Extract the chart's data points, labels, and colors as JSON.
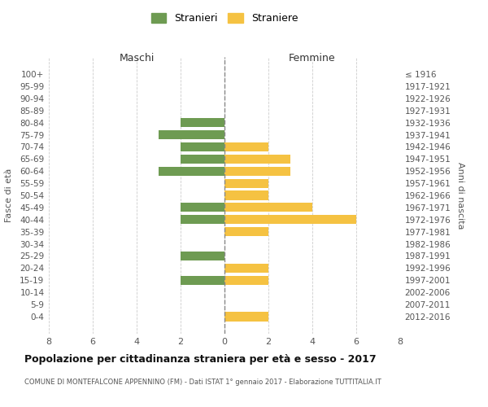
{
  "age_groups": [
    "100+",
    "95-99",
    "90-94",
    "85-89",
    "80-84",
    "75-79",
    "70-74",
    "65-69",
    "60-64",
    "55-59",
    "50-54",
    "45-49",
    "40-44",
    "35-39",
    "30-34",
    "25-29",
    "20-24",
    "15-19",
    "10-14",
    "5-9",
    "0-4"
  ],
  "birth_years": [
    "≤ 1916",
    "1917-1921",
    "1922-1926",
    "1927-1931",
    "1932-1936",
    "1937-1941",
    "1942-1946",
    "1947-1951",
    "1952-1956",
    "1957-1961",
    "1962-1966",
    "1967-1971",
    "1972-1976",
    "1977-1981",
    "1982-1986",
    "1987-1991",
    "1992-1996",
    "1997-2001",
    "2002-2006",
    "2007-2011",
    "2012-2016"
  ],
  "maschi": [
    0,
    0,
    0,
    0,
    2,
    3,
    2,
    2,
    3,
    0,
    0,
    2,
    2,
    0,
    0,
    2,
    0,
    2,
    0,
    0,
    0
  ],
  "femmine": [
    0,
    0,
    0,
    0,
    0,
    0,
    2,
    3,
    3,
    2,
    2,
    4,
    6,
    2,
    0,
    0,
    2,
    2,
    0,
    0,
    2
  ],
  "color_maschi": "#6e9b52",
  "color_femmine": "#f5c242",
  "title": "Popolazione per cittadinanza straniera per età e sesso - 2017",
  "subtitle": "COMUNE DI MONTEFALCONE APPENNINO (FM) - Dati ISTAT 1° gennaio 2017 - Elaborazione TUTTITALIA.IT",
  "xlabel_left": "Maschi",
  "xlabel_right": "Femmine",
  "ylabel_left": "Fasce di età",
  "ylabel_right": "Anni di nascita",
  "legend_maschi": "Stranieri",
  "legend_femmine": "Straniere",
  "xlim": 8,
  "background_color": "#ffffff",
  "grid_color": "#cccccc"
}
